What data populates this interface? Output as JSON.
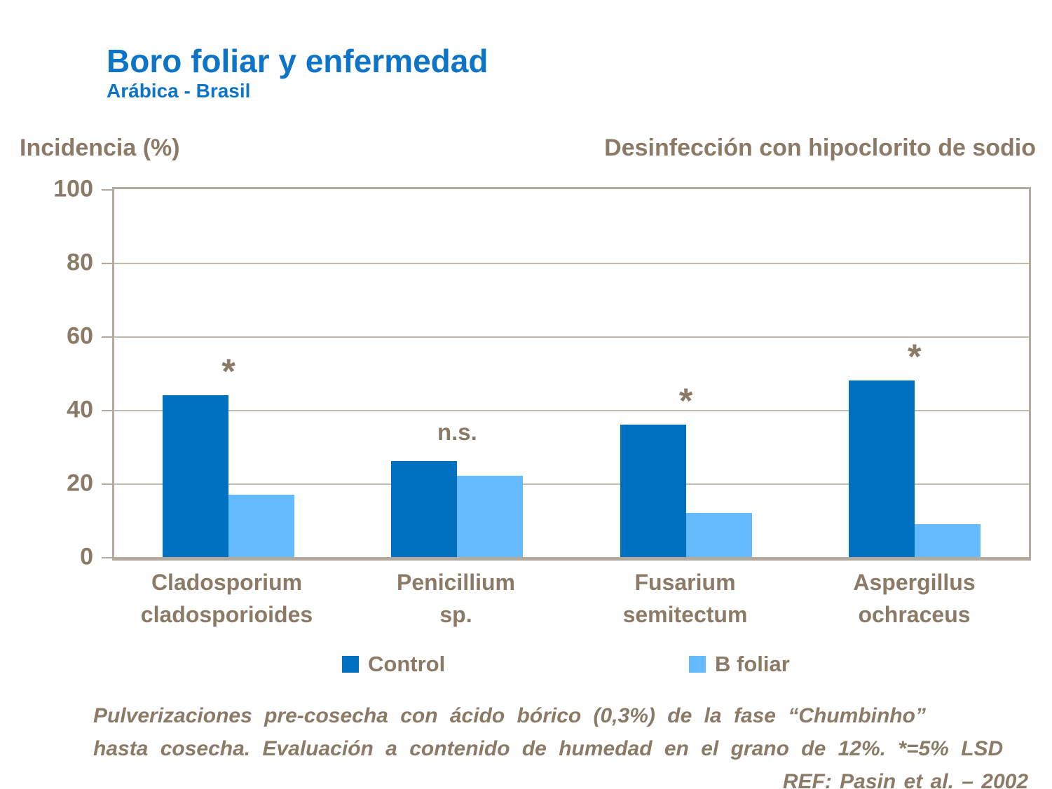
{
  "slide": {
    "title": "Boro foliar y enfermedad",
    "subtitle": "Arábica - Brasil",
    "left_header": "Incidencia (%)",
    "right_header": "Desinfección con hipoclorito de sodio"
  },
  "chart_data": {
    "type": "bar",
    "categories": [
      "Cladosporium cladosporioides",
      "Penicillium sp.",
      "Fusarium semitectum",
      "Aspergillus ochraceus"
    ],
    "category_label_lines": [
      [
        "Cladosporium",
        "cladosporioides"
      ],
      [
        "Penicillium",
        "sp."
      ],
      [
        "Fusarium",
        "semitectum"
      ],
      [
        "Aspergillus",
        "ochraceus"
      ]
    ],
    "series": [
      {
        "name": "Control",
        "color": "#0070c0",
        "values": [
          44,
          26,
          36,
          48
        ]
      },
      {
        "name": "B foliar",
        "color": "#66bbff",
        "values": [
          17,
          22,
          12,
          9
        ]
      }
    ],
    "annotations": [
      "*",
      "n.s.",
      "*",
      "*"
    ],
    "ylabel": "Incidencia (%)",
    "ylim": [
      0,
      100
    ],
    "yticks": [
      0,
      20,
      40,
      60,
      80,
      100
    ],
    "grid": true,
    "legend_position": "bottom"
  },
  "footer": {
    "lines": [
      "Pulverizaciones pre-cosecha con ácido bórico (0,3%) de la fase “Chumbinho”",
      "hasta cosecha. Evaluación a contenido de humedad en el grano de 12%. *=5% LSD",
      "REF: Pasin et al. – 2002"
    ]
  },
  "colors": {
    "title_blue": "#0d74c7",
    "text_brown": "#8a7a66",
    "axis_tan": "#b3a99c",
    "gridline_tan": "#c2b9ad",
    "control_bar": "#0070c0",
    "b_foliar_bar": "#66bbff"
  }
}
